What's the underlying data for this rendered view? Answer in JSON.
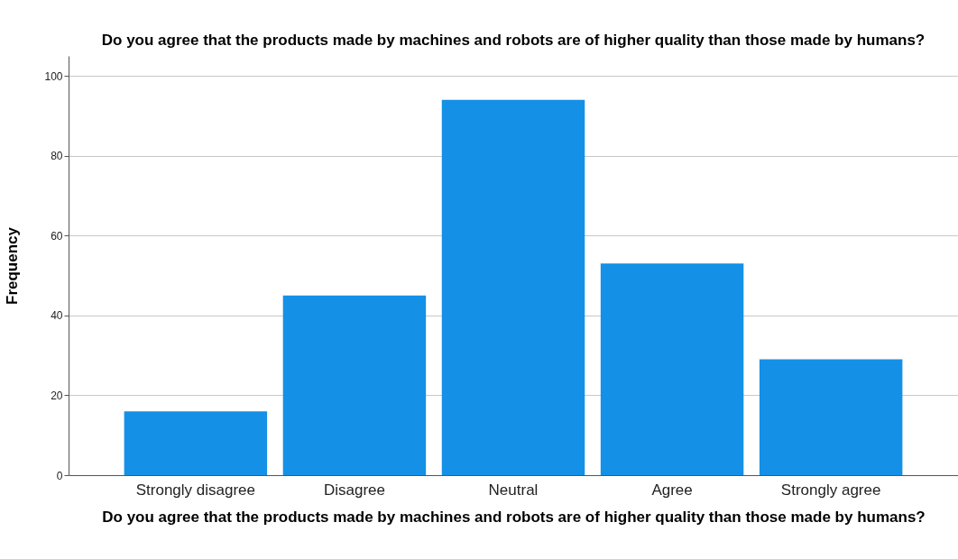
{
  "chart_data": {
    "type": "bar",
    "title": "Do you agree that the products made by machines and robots are of higher quality than those made by humans?",
    "xlabel": "Do you agree that the products made by machines and robots are of higher quality than those made by humans?",
    "ylabel": "Frequency",
    "categories": [
      "Strongly disagree",
      "Disagree",
      "Neutral",
      "Agree",
      "Strongly agree"
    ],
    "values": [
      16,
      45,
      94,
      53,
      29
    ],
    "color": "#1490e6",
    "ylim": [
      0,
      105
    ],
    "yticks": [
      0,
      20,
      40,
      60,
      80,
      100
    ],
    "grid": "y"
  }
}
